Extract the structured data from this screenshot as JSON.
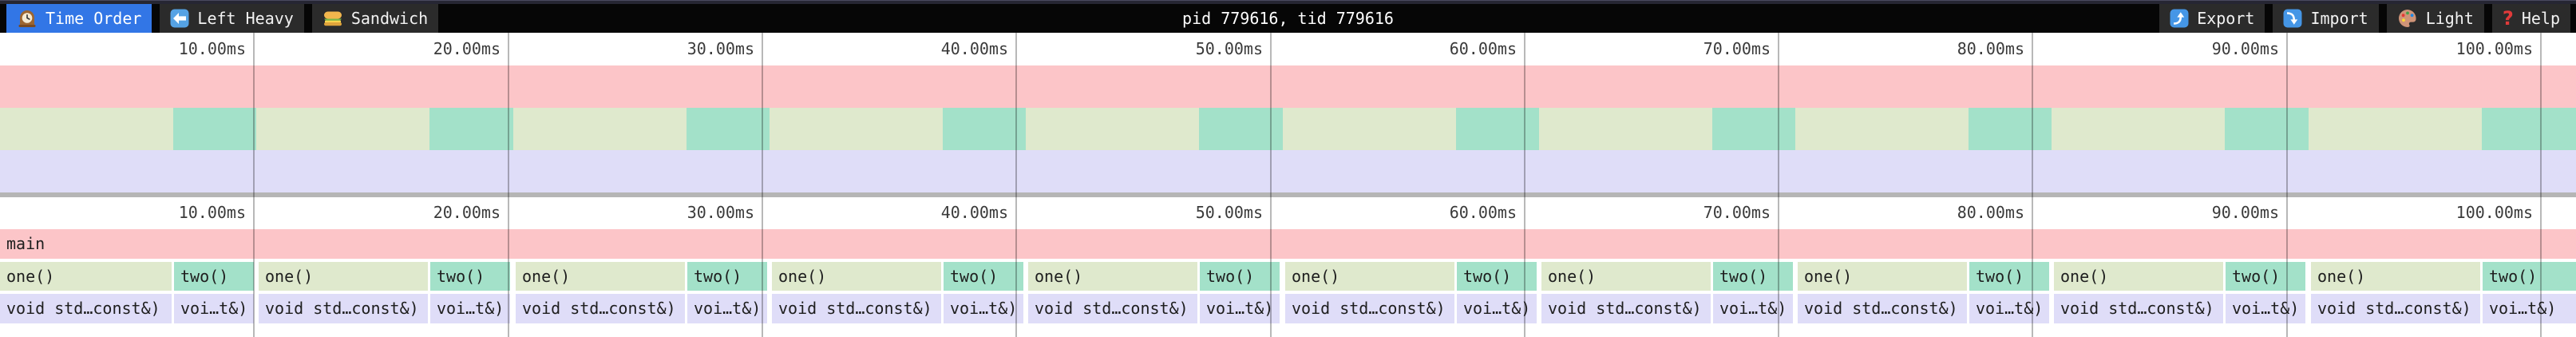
{
  "topbar": {
    "tabs": [
      {
        "label": "Time Order",
        "icon": "clock-icon",
        "active": true
      },
      {
        "label": "Left Heavy",
        "icon": "left-arrow-icon",
        "active": false
      },
      {
        "label": "Sandwich",
        "icon": "sandwich-icon",
        "active": false
      }
    ],
    "title": "pid 779616, tid 779616",
    "actions": [
      {
        "label": "Export",
        "icon": "export-icon"
      },
      {
        "label": "Import",
        "icon": "import-icon"
      },
      {
        "label": "Light",
        "icon": "palette-icon"
      },
      {
        "label": "Help",
        "icon": "question-icon"
      }
    ]
  },
  "time_axis": {
    "unit": "ms",
    "tick_labels": [
      "10.00ms",
      "20.00ms",
      "30.00ms",
      "40.00ms",
      "50.00ms",
      "60.00ms",
      "70.00ms",
      "80.00ms",
      "90.00ms",
      "100.00ms"
    ]
  },
  "flamegraph": {
    "root_label": "main",
    "pair_count": 10,
    "cell_labels": {
      "one": "one()",
      "two": "two()",
      "one_detail": "void std…const&)",
      "two_detail": "voi…t&)"
    }
  },
  "colors": {
    "accent_blue": "#3276e6",
    "toolbar_black": "#060606",
    "tab_gray": "#2b2b2b",
    "frame_pink": "#fcc5c8",
    "frame_green": "#dfe9cd",
    "frame_teal": "#a3e1c9",
    "frame_lavender": "#dfddf8",
    "divider_gray": "#b5b5b5",
    "help_red": "#e03a3a"
  },
  "chart_data": {
    "type": "flame_chart",
    "title": "pid 779616, tid 779616",
    "x_axis": {
      "unit": "ms",
      "ticks": [
        10,
        20,
        30,
        40,
        50,
        60,
        70,
        80,
        90,
        100
      ],
      "range_ms": [
        0,
        101.4
      ]
    },
    "rows": [
      {
        "depth": 0,
        "frames": [
          {
            "name": "main",
            "start_ms": 0,
            "end_ms": 101.4
          }
        ]
      },
      {
        "depth": 1,
        "pattern_repeats": 10,
        "pattern": [
          {
            "name": "one()",
            "approx_duration_ms": 6.8
          },
          {
            "name": "two()",
            "approx_duration_ms": 3.3
          }
        ]
      },
      {
        "depth": 2,
        "pattern_repeats": 10,
        "pattern": [
          {
            "name": "void std…const&)",
            "approx_duration_ms": 6.8
          },
          {
            "name": "voi…t&)",
            "approx_duration_ms": 3.3
          }
        ]
      },
      {
        "note": "minimap at top mirrors the same three rows at reduced height"
      }
    ]
  }
}
